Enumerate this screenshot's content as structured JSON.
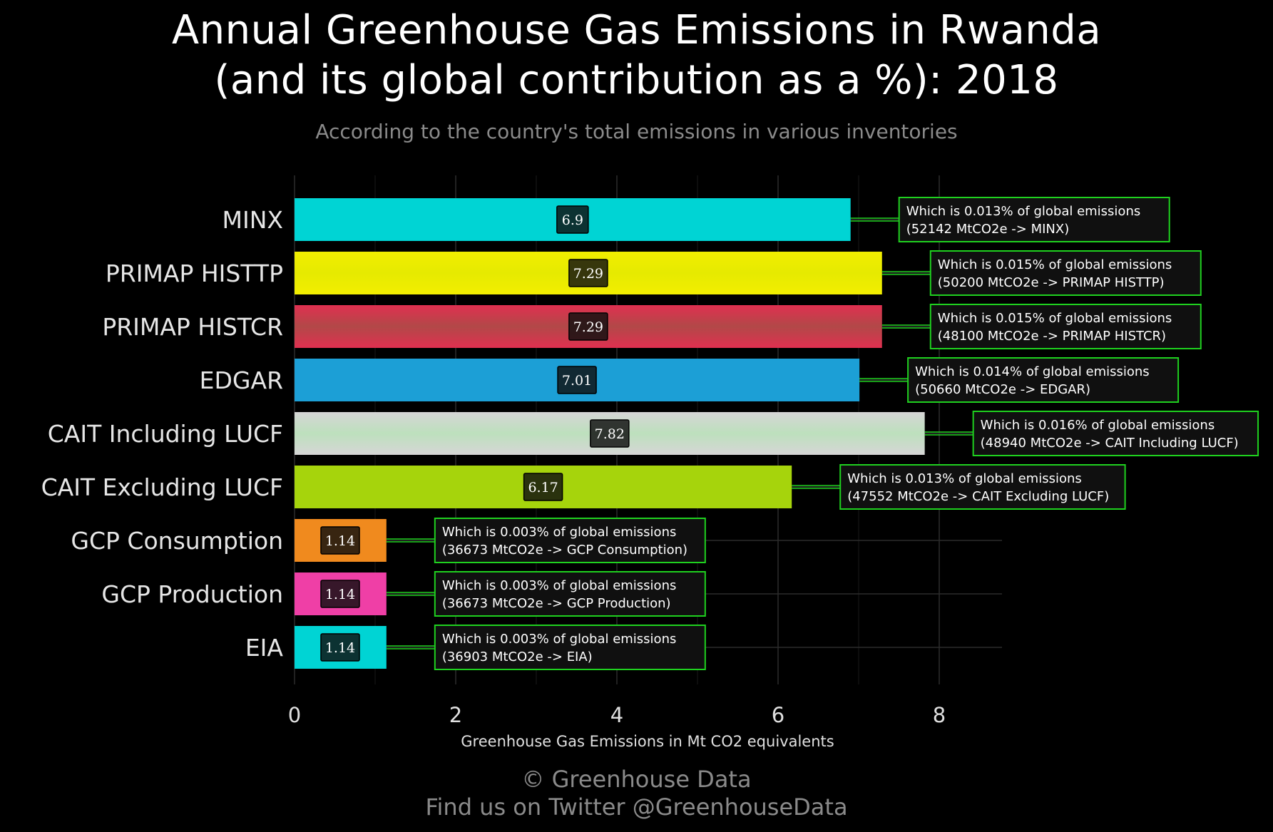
{
  "header": {
    "title_line1": "Annual Greenhouse Gas Emissions in Rwanda",
    "title_line2": "(and its global contribution as a %): 2018",
    "subtitle": "According to the country's total emissions in various inventories"
  },
  "footer": {
    "line1": "© Greenhouse Data",
    "line2": "Find us on Twitter @GreenhouseData"
  },
  "chart_data": {
    "type": "bar",
    "orientation": "horizontal",
    "title": "Annual Greenhouse Gas Emissions in Rwanda (and its global contribution as a %): 2018",
    "subtitle": "According to the country's total emissions in various inventories",
    "xlabel": "Greenhouse Gas Emissions in Mt CO2 equivalents",
    "ylabel": "",
    "xlim": [
      0,
      8.8
    ],
    "xticks": [
      0,
      2,
      4,
      6,
      8
    ],
    "grid": true,
    "categories": [
      "MINX",
      "PRIMAP HISTTP",
      "PRIMAP HISTCR",
      "EDGAR",
      "CAIT Including LUCF",
      "CAIT Excluding LUCF",
      "GCP Consumption",
      "GCP Production",
      "EIA"
    ],
    "values": [
      6.9,
      7.29,
      7.29,
      7.01,
      7.82,
      6.17,
      1.14,
      1.14,
      1.14
    ],
    "value_labels": [
      "6.9",
      "7.29",
      "7.29",
      "7.01",
      "7.82",
      "6.17",
      "1.14",
      "1.14",
      "1.14"
    ],
    "colors": [
      "#00d4d4",
      "#f2ee00",
      "#e03050",
      "#1c9fd6",
      "#d6d6d6",
      "#a6d40c",
      "#f08a1e",
      "#ef3fa6",
      "#00d4d4"
    ],
    "annotations": [
      {
        "line1": "Which is 0.013% of global emissions",
        "line2": "(52142 MtCO2e -> MINX)"
      },
      {
        "line1": "Which is 0.015% of global emissions",
        "line2": "(50200 MtCO2e -> PRIMAP HISTTP)"
      },
      {
        "line1": "Which is 0.015% of global emissions",
        "line2": "(48100 MtCO2e -> PRIMAP HISTCR)"
      },
      {
        "line1": "Which is 0.014% of global emissions",
        "line2": "(50660 MtCO2e -> EDGAR)"
      },
      {
        "line1": "Which is 0.016% of global emissions",
        "line2": "(48940 MtCO2e -> CAIT Including LUCF)"
      },
      {
        "line1": "Which is 0.013% of global emissions",
        "line2": "(47552 MtCO2e -> CAIT Excluding LUCF)"
      },
      {
        "line1": "Which is 0.003% of global emissions",
        "line2": "(36673 MtCO2e -> GCP Consumption)"
      },
      {
        "line1": "Which is 0.003% of global emissions",
        "line2": "(36673 MtCO2e -> GCP Production)"
      },
      {
        "line1": "Which is 0.003% of global emissions",
        "line2": "(36903 MtCO2e -> EIA)"
      }
    ],
    "annotation_border_color": "#1fd11f"
  }
}
